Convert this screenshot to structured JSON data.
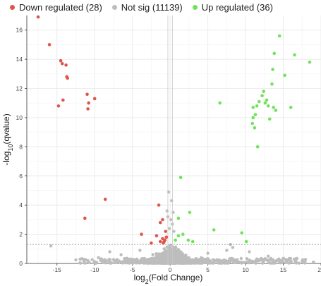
{
  "chart_data": {
    "type": "scatter",
    "title": "",
    "xlabel": "log2(Fold Change)",
    "xlabel_parts": {
      "pre": "log",
      "sub": "2",
      "post": "(Fold Change)"
    },
    "ylabel": "-log10(qvalue)",
    "ylabel_parts": {
      "pre": "-log",
      "sub": "10",
      "post": "(qvalue)"
    },
    "xlim": [
      -19,
      20
    ],
    "ylim": [
      0,
      17
    ],
    "xticks": [
      -15,
      -10,
      -5,
      0,
      5,
      10,
      15,
      20
    ],
    "yticks": [
      0,
      2,
      4,
      6,
      8,
      10,
      12,
      14,
      16
    ],
    "grid": true,
    "legend_position": "top",
    "threshold_y": 1.3,
    "threshold_x": [
      -0.3,
      0.3
    ],
    "series": [
      {
        "name": "Down regulated (28)",
        "color": "#e0554a",
        "points": [
          [
            -17.5,
            16.9
          ],
          [
            -16,
            15.0
          ],
          [
            -14.5,
            13.9
          ],
          [
            -14.3,
            13.7
          ],
          [
            -13.8,
            13.6
          ],
          [
            -13.7,
            12.8
          ],
          [
            -13.6,
            12.7
          ],
          [
            -14.8,
            10.8
          ],
          [
            -14.2,
            11.2
          ],
          [
            -11.0,
            11.6
          ],
          [
            -10.8,
            11.0
          ],
          [
            -10.9,
            10.6
          ],
          [
            -10.0,
            11.3
          ],
          [
            -8.6,
            4.4
          ],
          [
            -11.3,
            3.1
          ],
          [
            -1.5,
            4.0
          ],
          [
            -1.0,
            3.0
          ],
          [
            -1.3,
            2.8
          ],
          [
            -3.8,
            2.0
          ],
          [
            -1.8,
            1.9
          ],
          [
            -1.0,
            1.7
          ],
          [
            -1.3,
            1.5
          ],
          [
            -0.7,
            1.6
          ],
          [
            -0.9,
            1.4
          ],
          [
            -0.5,
            1.8
          ],
          [
            -2.5,
            1.4
          ],
          [
            -0.6,
            2.2
          ],
          [
            -0.8,
            1.5
          ]
        ]
      },
      {
        "name": "Not sig (11139)",
        "color": "#bdbdbd",
        "points": []
      },
      {
        "name": "Up regulated (36)",
        "color": "#6fe45a",
        "points": [
          [
            14.5,
            15.6
          ],
          [
            16.5,
            14.3
          ],
          [
            18.5,
            13.8
          ],
          [
            13.8,
            14.4
          ],
          [
            13.6,
            13.3
          ],
          [
            15.2,
            12.9
          ],
          [
            13.5,
            12.3
          ],
          [
            12.4,
            11.8
          ],
          [
            12.2,
            11.5
          ],
          [
            12.8,
            11.2
          ],
          [
            12.6,
            11.0
          ],
          [
            11.8,
            11.1
          ],
          [
            11.5,
            10.8
          ],
          [
            11.0,
            10.7
          ],
          [
            13.7,
            10.7
          ],
          [
            14.0,
            10.5
          ],
          [
            11.3,
            10.2
          ],
          [
            11.0,
            10.0
          ],
          [
            13.2,
            9.9
          ],
          [
            10.9,
            9.6
          ],
          [
            11.2,
            9.3
          ],
          [
            11.6,
            8.0
          ],
          [
            6.6,
            11.0
          ],
          [
            16.0,
            10.7
          ],
          [
            13.0,
            10.8
          ],
          [
            1.4,
            5.9
          ],
          [
            1.1,
            3.1
          ],
          [
            2.6,
            3.5
          ],
          [
            5.8,
            2.3
          ],
          [
            9.5,
            2.1
          ],
          [
            10.1,
            1.5
          ],
          [
            1.1,
            1.9
          ],
          [
            1.7,
            2.0
          ],
          [
            2.4,
            1.6
          ],
          [
            0.7,
            1.6
          ],
          [
            3.0,
            1.5
          ]
        ]
      }
    ],
    "background_points": [
      [
        -0.2,
        4.9
      ],
      [
        0.2,
        4.3
      ],
      [
        -0.4,
        3.6
      ],
      [
        0.4,
        3.5
      ],
      [
        -0.3,
        3.2
      ],
      [
        0.1,
        3.0
      ],
      [
        0.3,
        2.7
      ],
      [
        -0.1,
        2.4
      ],
      [
        0.5,
        2.2
      ],
      [
        -15.8,
        1.2
      ],
      [
        -8.0,
        0.8
      ],
      [
        -9.5,
        0.4
      ],
      [
        -12.5,
        0.25
      ],
      [
        -6.5,
        0.6
      ],
      [
        -4.0,
        0.9
      ],
      [
        5.0,
        0.7
      ],
      [
        7.5,
        0.9
      ],
      [
        8.3,
        1.1
      ],
      [
        10.5,
        0.8
      ],
      [
        13.0,
        0.5
      ],
      [
        11.5,
        0.3
      ],
      [
        15.0,
        0.35
      ],
      [
        17.5,
        0.15
      ],
      [
        19.0,
        0.1
      ],
      [
        8.0,
        1.3
      ]
    ]
  },
  "legend": {
    "items": [
      {
        "label": "Down regulated (28)",
        "color": "#e0554a"
      },
      {
        "label": "Not sig (11139)",
        "color": "#bdbdbd"
      },
      {
        "label": "Up regulated (36)",
        "color": "#6fe45a"
      }
    ]
  }
}
